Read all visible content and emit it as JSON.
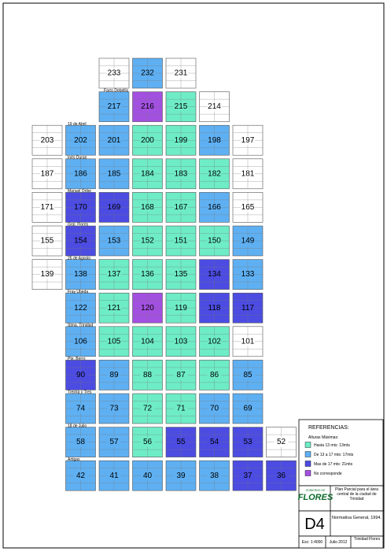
{
  "map": {
    "rows": [
      {
        "labels": [
          null,
          null,
          "233",
          "232",
          "231"
        ],
        "zones": [
          null,
          null,
          null,
          1,
          null
        ]
      },
      {
        "labels": [
          null,
          null,
          "217",
          "216",
          "215",
          "214"
        ],
        "zones": [
          null,
          null,
          1,
          3,
          0,
          null
        ]
      },
      {
        "labels": [
          "203",
          "202",
          "201",
          "200",
          "199",
          "198",
          "197"
        ],
        "zones": [
          null,
          1,
          1,
          0,
          0,
          1,
          null
        ]
      },
      {
        "labels": [
          "187",
          "186",
          "185",
          "184",
          "183",
          "182",
          "181"
        ],
        "zones": [
          null,
          1,
          1,
          0,
          0,
          0,
          null
        ]
      },
      {
        "labels": [
          "171",
          "170",
          "169",
          "168",
          "167",
          "166",
          "165"
        ],
        "zones": [
          null,
          2,
          2,
          0,
          0,
          1,
          null
        ]
      },
      {
        "labels": [
          "155",
          "154",
          "153",
          "152",
          "151",
          "150",
          "149"
        ],
        "zones": [
          null,
          2,
          1,
          0,
          0,
          0,
          1
        ]
      },
      {
        "labels": [
          "139",
          "138",
          "137",
          "136",
          "135",
          "134",
          "133"
        ],
        "zones": [
          null,
          1,
          0,
          0,
          0,
          2,
          1
        ]
      },
      {
        "labels": [
          null,
          "122",
          "121",
          "120",
          "119",
          "118",
          "117"
        ],
        "zones": [
          null,
          1,
          0,
          3,
          0,
          2,
          2
        ]
      },
      {
        "labels": [
          null,
          "106",
          "105",
          "104",
          "103",
          "102",
          "101"
        ],
        "zones": [
          null,
          1,
          0,
          0,
          0,
          0,
          null
        ]
      },
      {
        "labels": [
          null,
          "90",
          "89",
          "88",
          "87",
          "86",
          "85"
        ],
        "zones": [
          null,
          2,
          1,
          0,
          0,
          0,
          1
        ]
      },
      {
        "labels": [
          null,
          "74",
          "73",
          "72",
          "71",
          "70",
          "69"
        ],
        "zones": [
          null,
          1,
          1,
          0,
          0,
          1,
          1
        ]
      },
      {
        "labels": [
          null,
          "58",
          "57",
          "56",
          "55",
          "54",
          "53",
          "52"
        ],
        "zones": [
          null,
          1,
          1,
          0,
          2,
          2,
          2,
          null
        ]
      },
      {
        "labels": [
          null,
          "42",
          "41",
          "40",
          "39",
          "38",
          "37",
          "36"
        ],
        "zones": [
          null,
          1,
          1,
          1,
          1,
          1,
          2,
          2
        ]
      }
    ],
    "streets": [
      "Farro Debellis",
      "19 de Abril",
      "Inés Duran",
      "Manuel Oribe",
      "Gral. Flores",
      "25 de Agosto",
      "Fray Ubeda",
      "Stma. Trinidad",
      "Pte. Berro",
      "Treinta y Tres",
      "18 de Julio",
      "Artigas"
    ],
    "legend": {
      "title": "REFERENCIAS:",
      "subtitle": "Alturas Máximas:",
      "items": [
        {
          "label": "Hasta 13 mts: 13mts",
          "color": "#6eecc6"
        },
        {
          "label": "De 13 a 17 mts: 17mts",
          "color": "#5fb0f2"
        },
        {
          "label": "Mas de 17 mts: 21mts",
          "color": "#4c4ce2"
        },
        {
          "label": "No corresponde",
          "color": "#a250e0"
        }
      ]
    },
    "titleblock": {
      "logo_top": "GOBIERNO DE",
      "logo": "FLORES",
      "plan": "Plan Parcial para el área central de la ciudad de Trinidad",
      "sheet": "D4",
      "name": "Normativa General, 1994.",
      "scale": "Esc: 1:4000",
      "date": "Julio 2012",
      "place": "Trinidad Flores"
    }
  }
}
